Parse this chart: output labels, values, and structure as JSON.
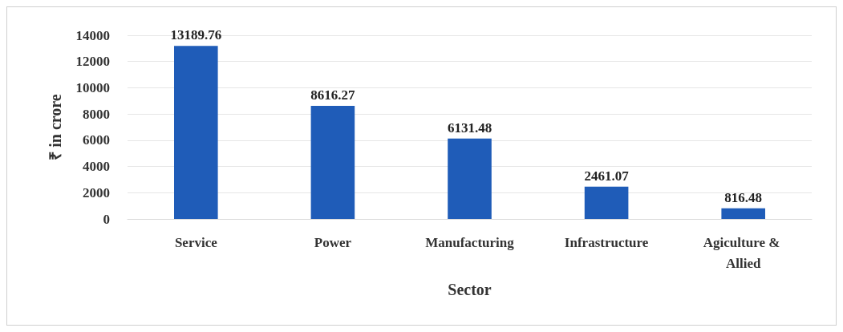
{
  "chart_data": {
    "type": "bar",
    "xlabel": "Sector",
    "ylabel": "₹ in crore",
    "categories": [
      "Service",
      "Power",
      "Manufacturing",
      "Infrastructure",
      "Agiculture & Allied"
    ],
    "values": [
      13189.76,
      8616.27,
      6131.48,
      2461.07,
      816.48
    ],
    "color": "#1f5cb8",
    "ylim": [
      0,
      14000
    ],
    "yticks": [
      0,
      2000,
      4000,
      6000,
      8000,
      10000,
      12000,
      14000
    ],
    "grid": "y",
    "data_labels": true
  }
}
